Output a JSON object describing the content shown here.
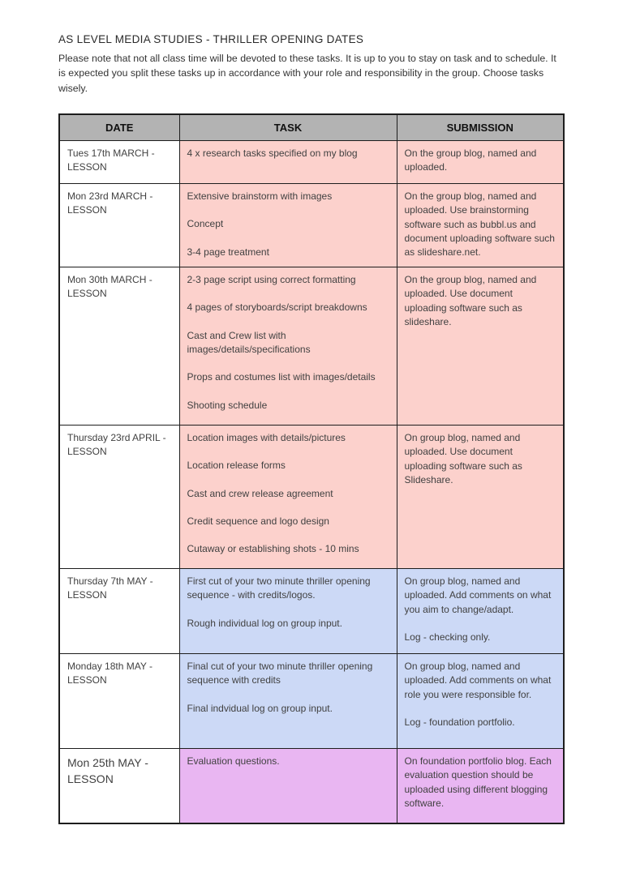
{
  "doc": {
    "title": "AS LEVEL MEDIA STUDIES - THRILLER OPENING DATES",
    "intro": "Please note that not all class time will be devoted to these tasks. It is up to you to stay on task and to schedule. It is expected you split these tasks up in accordance with your role and responsibility in the group. Choose tasks wisely."
  },
  "colors": {
    "header_bg": "#b3b3b3",
    "pink": "#fcd1cc",
    "blue": "#ccd9f6",
    "purple": "#e9b6f2",
    "border": "#1d1d1d",
    "text": "#414141"
  },
  "table": {
    "headers": [
      "DATE",
      "TASK",
      "SUBMISSION"
    ],
    "rows": [
      {
        "date": "Tues 17th MARCH - LESSON",
        "tone": "pink",
        "tasks": [
          "4 x research tasks specified on my blog"
        ],
        "submission": [
          "On the group blog, named and uploaded."
        ]
      },
      {
        "date": "Mon 23rd MARCH - LESSON",
        "tone": "pink",
        "tasks": [
          "Extensive brainstorm with images",
          "Concept",
          "3-4 page treatment"
        ],
        "submission": [
          "On the group blog, named and uploaded. Use brainstorming software such as bubbl.us and document uploading software such as slideshare.net."
        ]
      },
      {
        "date": "Mon 30th MARCH - LESSON",
        "tone": "pink",
        "tasks": [
          "2-3 page script using correct formatting",
          "4 pages of storyboards/script breakdowns",
          "Cast and Crew list with images/details/specifications",
          "Props and costumes list with images/details",
          "Shooting schedule"
        ],
        "submission": [
          "On the group blog, named and uploaded. Use document uploading software such as slideshare."
        ]
      },
      {
        "date": "Thursday 23rd APRIL - LESSON",
        "tone": "pink",
        "tasks": [
          "Location images with details/pictures",
          "Location release forms",
          "Cast and crew release agreement",
          "Credit sequence and logo design",
          "Cutaway or establishing shots - 10 mins"
        ],
        "submission": [
          "On group blog, named and uploaded. Use document uploading software such as Slideshare."
        ]
      },
      {
        "date": "Thursday 7th MAY - LESSON",
        "tone": "blue",
        "tasks": [
          "First cut of your two minute thriller opening sequence - with credits/logos.",
          "Rough individual log on group input."
        ],
        "submission": [
          "On group blog, named and uploaded. Add comments on what you aim to change/adapt.",
          "Log - checking only."
        ]
      },
      {
        "date": "Monday 18th MAY - LESSON",
        "tone": "blue",
        "tasks": [
          "Final cut of your two minute thriller opening sequence with credits",
          "Final indvidual log on group input."
        ],
        "submission": [
          "On group blog, named and uploaded. Add comments on what role you were responsible for.",
          "Log - foundation portfolio."
        ]
      },
      {
        "date": "Mon 25th MAY - LESSON",
        "tone": "purple",
        "tasks": [
          "Evaluation questions."
        ],
        "submission": [
          "On foundation portfolio blog. Each evaluation question should be uploaded using different blogging software."
        ]
      }
    ]
  }
}
